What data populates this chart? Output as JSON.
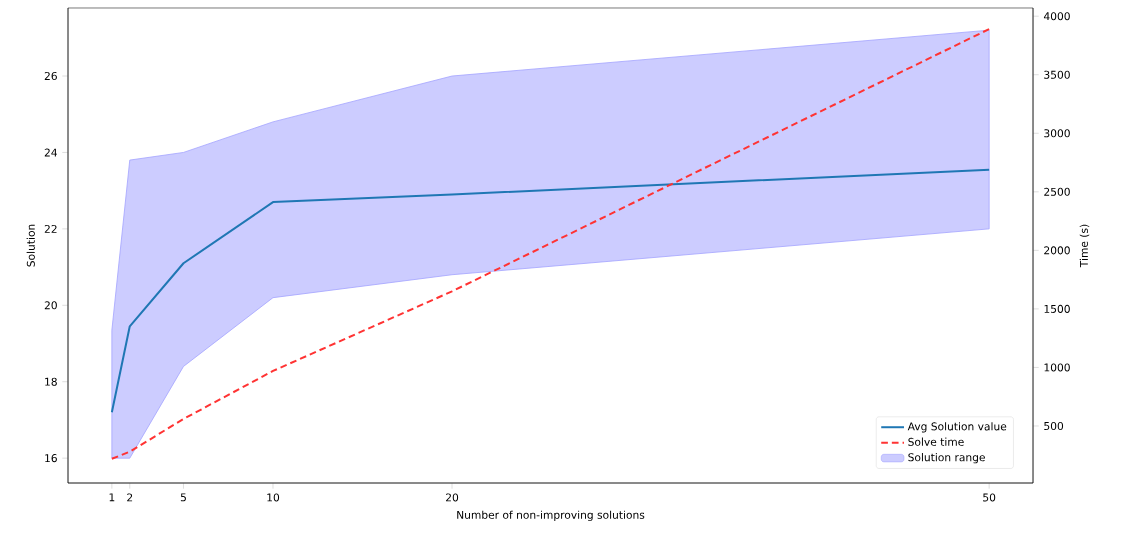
{
  "chart_data": {
    "type": "line",
    "xlabel": "Number of non-improving solutions",
    "ylabel": "Solution",
    "y2label": "Time (s)",
    "x": [
      1,
      2,
      5,
      10,
      20,
      50
    ],
    "xlim": [
      -1.45,
      52.45
    ],
    "xticks": [
      1,
      2,
      5,
      10,
      20,
      50
    ],
    "ylim": [
      15.35,
      27.78
    ],
    "yticks": [
      16,
      18,
      20,
      22,
      24,
      26
    ],
    "y2lim": [
      13,
      4070
    ],
    "y2ticks": [
      500,
      1000,
      1500,
      2000,
      2500,
      3000,
      3500,
      4000
    ],
    "legend": "bottom right",
    "series": [
      {
        "name": "Avg Solution value",
        "color": "#1f77b4",
        "line_style": "solid",
        "values": [
          17.2,
          19.45,
          21.1,
          22.7,
          22.9,
          23.55
        ],
        "lower": [
          16.0,
          16.0,
          18.4,
          20.2,
          20.8,
          22.0
        ],
        "upper": [
          19.35,
          23.8,
          24.0,
          24.8,
          26.0,
          27.2
        ]
      },
      {
        "name": "Solve time",
        "type": "line",
        "color": "#ff3333",
        "line_style": "dashed",
        "axis": "y2",
        "values": [
          220,
          280,
          560,
          970,
          1650,
          3890
        ]
      },
      {
        "name": "Solution range",
        "type": "area",
        "color": "#ccccff",
        "values": [
          null,
          null,
          null,
          null,
          null,
          null
        ]
      }
    ]
  }
}
